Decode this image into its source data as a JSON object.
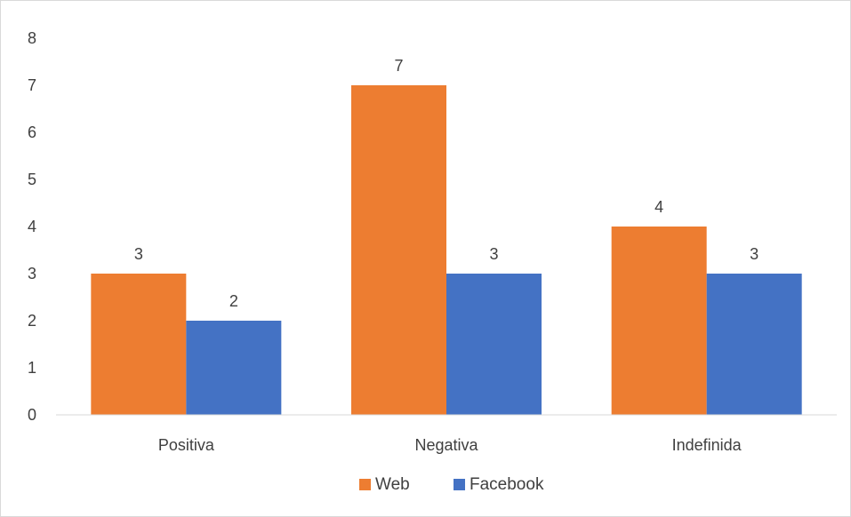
{
  "chart_data": {
    "type": "bar",
    "categories": [
      "Positiva",
      "Negativa",
      "Indefinida"
    ],
    "series": [
      {
        "name": "Web",
        "values": [
          3,
          7,
          4
        ],
        "color": "#ED7D31"
      },
      {
        "name": "Facebook",
        "values": [
          2,
          3,
          3
        ],
        "color": "#4472C4"
      }
    ],
    "title": "",
    "xlabel": "",
    "ylabel": "",
    "ylim": [
      0,
      8
    ],
    "yticks": [
      0,
      1,
      2,
      3,
      4,
      5,
      6,
      7,
      8
    ],
    "grid": false,
    "data_labels": true,
    "legend_position": "bottom",
    "axis_color": "#d9d9d9",
    "text_color": "#404040"
  }
}
